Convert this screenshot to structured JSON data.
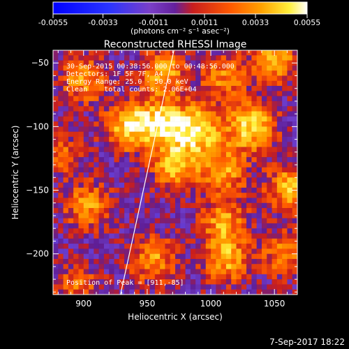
{
  "colorbar": {
    "ticks": [
      "-0.0055",
      "-0.0033",
      "-0.0011",
      "0.0011",
      "0.0033",
      "0.0055"
    ],
    "label": "(photons cm⁻² s⁻¹ asec⁻²)"
  },
  "title": "Reconstructed RHESSI Image",
  "info": [
    "30-Sep-2015 00:38:56.000 to 00:48:56.000",
    "Detectors: 1F 5F 7F, A4",
    "Energy Range: 25.0 - 50.0 keV",
    "Clean    total counts: 2.06E+04"
  ],
  "peak_label": "Position of Peak = [911,-85]",
  "timestamp": "7-Sep-2017 18:22",
  "chart_data": {
    "type": "heatmap",
    "title": "Reconstructed RHESSI Image",
    "xlabel": "Heliocentric X (arcsec)",
    "ylabel": "Heliocentric Y (arcsec)",
    "xlim": [
      876,
      1068
    ],
    "ylim": [
      -232,
      -40
    ],
    "xticks": [
      900,
      950,
      1000,
      1050
    ],
    "yticks": [
      -50,
      -100,
      -150,
      -200
    ],
    "value_range": [
      -0.0055,
      0.0055
    ],
    "pixel_size_arcsec": 4,
    "colormap": "blue-purple-red-yellow-white",
    "sources": [
      {
        "x": 935,
        "y": -100,
        "peak": 0.0049
      },
      {
        "x": 962,
        "y": -98,
        "peak": 0.0052
      },
      {
        "x": 990,
        "y": -103,
        "peak": 0.0055
      },
      {
        "x": 1032,
        "y": -100,
        "peak": 0.0053
      },
      {
        "x": 900,
        "y": -63,
        "peak": 0.0036
      },
      {
        "x": 962,
        "y": -58,
        "peak": 0.0042
      },
      {
        "x": 1010,
        "y": -62,
        "peak": 0.0031
      },
      {
        "x": 1050,
        "y": -48,
        "peak": 0.0041
      },
      {
        "x": 972,
        "y": -132,
        "peak": 0.0042
      },
      {
        "x": 1010,
        "y": -135,
        "peak": 0.0039
      },
      {
        "x": 903,
        "y": -162,
        "peak": 0.0036
      },
      {
        "x": 1010,
        "y": -175,
        "peak": 0.0037
      },
      {
        "x": 955,
        "y": -205,
        "peak": 0.0036
      },
      {
        "x": 1012,
        "y": -205,
        "peak": 0.0039
      },
      {
        "x": 1062,
        "y": -148,
        "peak": 0.0042
      },
      {
        "x": 1058,
        "y": -200,
        "peak": 0.0031
      },
      {
        "x": 895,
        "y": -225,
        "peak": 0.0026
      },
      {
        "x": 880,
        "y": -120,
        "peak": 0.0026
      }
    ],
    "lines": [
      {
        "x": [
          929,
          971
        ],
        "y": [
          -232,
          -40
        ]
      }
    ],
    "peak_position": [
      911,
      -85
    ]
  }
}
